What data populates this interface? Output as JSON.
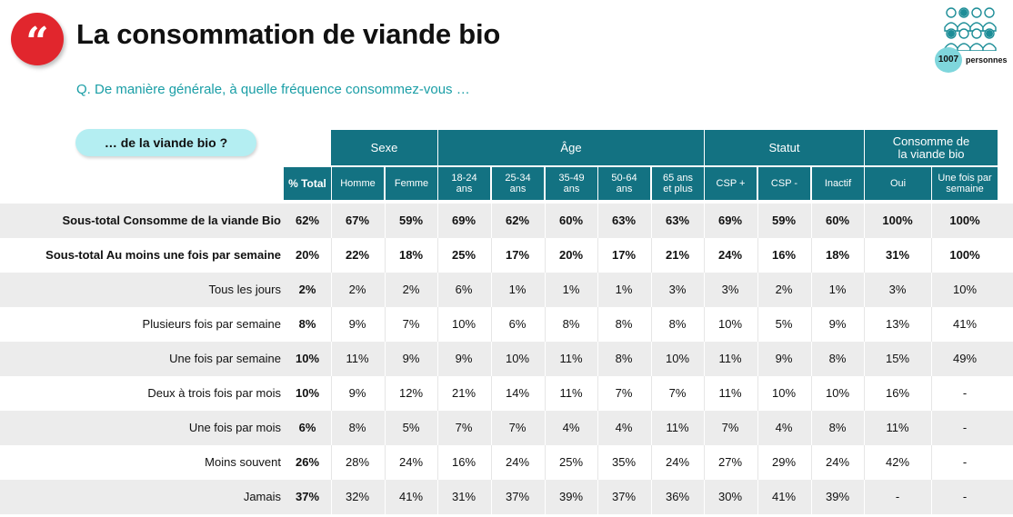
{
  "header": {
    "logo_glyph": "“",
    "title": "La consommation de viande bio",
    "question": "Q. De manière générale, à quelle fréquence consommez-vous …",
    "sample_count": "1007",
    "sample_label": "personnes"
  },
  "item_label": "… de la viande bio ?",
  "groups": [
    {
      "label": "Sexe"
    },
    {
      "label": "Âge"
    },
    {
      "label": "Statut"
    },
    {
      "label": "Consomme de la viande bio"
    }
  ],
  "columns": [
    "% Total",
    "Homme",
    "Femme",
    "18-24 ans",
    "25-34 ans",
    "35-49 ans",
    "50-64 ans",
    "65 ans et plus",
    "CSP +",
    "CSP -",
    "Inactif",
    "Oui",
    "Une fois par semaine"
  ],
  "rows": [
    {
      "label": "Sous-total  Consomme de la viande Bio",
      "bold": true,
      "values": [
        "62%",
        "67%",
        "59%",
        "69%",
        "62%",
        "60%",
        "63%",
        "63%",
        "69%",
        "59%",
        "60%",
        "100%",
        "100%"
      ]
    },
    {
      "label": "Sous-total  Au moins une fois par semaine",
      "bold": true,
      "values": [
        "20%",
        "22%",
        "18%",
        "25%",
        "17%",
        "20%",
        "17%",
        "21%",
        "24%",
        "16%",
        "18%",
        "31%",
        "100%"
      ]
    },
    {
      "label": "Tous les jours",
      "bold": false,
      "values": [
        "2%",
        "2%",
        "2%",
        "6%",
        "1%",
        "1%",
        "1%",
        "3%",
        "3%",
        "2%",
        "1%",
        "3%",
        "10%"
      ]
    },
    {
      "label": "Plusieurs fois par semaine",
      "bold": false,
      "values": [
        "8%",
        "9%",
        "7%",
        "10%",
        "6%",
        "8%",
        "8%",
        "8%",
        "10%",
        "5%",
        "9%",
        "13%",
        "41%"
      ]
    },
    {
      "label": "Une fois par semaine",
      "bold": false,
      "values": [
        "10%",
        "11%",
        "9%",
        "9%",
        "10%",
        "11%",
        "8%",
        "10%",
        "11%",
        "9%",
        "8%",
        "15%",
        "49%"
      ]
    },
    {
      "label": "Deux à trois fois par mois",
      "bold": false,
      "values": [
        "10%",
        "9%",
        "12%",
        "21%",
        "14%",
        "11%",
        "7%",
        "7%",
        "11%",
        "10%",
        "10%",
        "16%",
        "-"
      ]
    },
    {
      "label": "Une fois par mois",
      "bold": false,
      "values": [
        "6%",
        "8%",
        "5%",
        "7%",
        "7%",
        "4%",
        "4%",
        "11%",
        "7%",
        "4%",
        "8%",
        "11%",
        "-"
      ]
    },
    {
      "label": "Moins souvent",
      "bold": false,
      "values": [
        "26%",
        "28%",
        "24%",
        "16%",
        "24%",
        "25%",
        "35%",
        "24%",
        "27%",
        "29%",
        "24%",
        "42%",
        "-"
      ]
    },
    {
      "label": "Jamais",
      "bold": false,
      "values": [
        "37%",
        "32%",
        "41%",
        "31%",
        "37%",
        "39%",
        "37%",
        "36%",
        "30%",
        "41%",
        "39%",
        "-",
        "-"
      ]
    }
  ]
}
